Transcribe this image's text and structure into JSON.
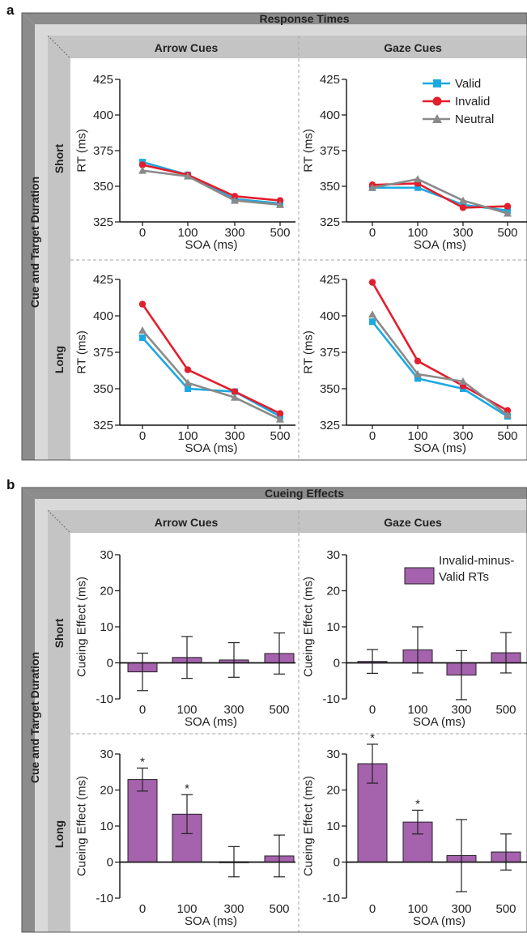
{
  "panels": {
    "a": {
      "letter": "a",
      "header": "Response Times",
      "columns": [
        "Arrow Cues",
        "Gaze Cues"
      ],
      "side_label": "Cue and Target Duration",
      "rows": [
        "Short",
        "Long"
      ]
    },
    "b": {
      "letter": "b",
      "header": "Cueing Effects",
      "columns": [
        "Arrow Cues",
        "Gaze Cues"
      ],
      "side_label": "Cue and Target Duration",
      "rows": [
        "Short",
        "Long"
      ]
    }
  },
  "colors": {
    "valid": "#1ba9e1",
    "invalid": "#e31e2d",
    "neutral": "#8a8a8a",
    "bar": "#a562ad",
    "frame_dark": "#8c8c8c",
    "frame_light": "#d9d9d9",
    "header_band": "#c4c4c4",
    "divider": "#a6a6a6"
  },
  "chart_data": [
    {
      "type": "line",
      "panel": "a",
      "column": "Arrow Cues",
      "row": "Short",
      "categories": [
        "0",
        "100",
        "300",
        "500"
      ],
      "xlabel": "SOA (ms)",
      "ylabel": "RT (ms)",
      "ylim": [
        325,
        425
      ],
      "yticks": [
        "325",
        "350",
        "375",
        "400",
        "425"
      ],
      "legend": null,
      "series": [
        {
          "name": "Valid",
          "values": [
            367,
            358,
            341,
            338
          ]
        },
        {
          "name": "Invalid",
          "values": [
            365,
            358,
            343,
            340
          ]
        },
        {
          "name": "Neutral",
          "values": [
            361,
            357,
            340,
            337
          ]
        }
      ]
    },
    {
      "type": "line",
      "panel": "a",
      "column": "Gaze Cues",
      "row": "Short",
      "categories": [
        "0",
        "100",
        "300",
        "500"
      ],
      "xlabel": "SOA (ms)",
      "ylabel": "RT (ms)",
      "ylim": [
        325,
        425
      ],
      "yticks": [
        "325",
        "350",
        "375",
        "400",
        "425"
      ],
      "legend": "top-right",
      "series": [
        {
          "name": "Valid",
          "values": [
            349,
            349,
            337,
            333
          ]
        },
        {
          "name": "Invalid",
          "values": [
            351,
            352,
            335,
            336
          ]
        },
        {
          "name": "Neutral",
          "values": [
            349,
            355,
            340,
            331
          ]
        }
      ]
    },
    {
      "type": "line",
      "panel": "a",
      "column": "Arrow Cues",
      "row": "Long",
      "categories": [
        "0",
        "100",
        "300",
        "500"
      ],
      "xlabel": "SOA (ms)",
      "ylabel": "RT (ms)",
      "ylim": [
        325,
        425
      ],
      "yticks": [
        "325",
        "350",
        "375",
        "400",
        "425"
      ],
      "legend": null,
      "series": [
        {
          "name": "Valid",
          "values": [
            385,
            350,
            348,
            331
          ]
        },
        {
          "name": "Invalid",
          "values": [
            408,
            363,
            348,
            333
          ]
        },
        {
          "name": "Neutral",
          "values": [
            390,
            354,
            344,
            329
          ]
        }
      ]
    },
    {
      "type": "line",
      "panel": "a",
      "column": "Gaze Cues",
      "row": "Long",
      "categories": [
        "0",
        "100",
        "300",
        "500"
      ],
      "xlabel": "SOA (ms)",
      "ylabel": "RT (ms)",
      "ylim": [
        325,
        425
      ],
      "yticks": [
        "325",
        "350",
        "375",
        "400",
        "425"
      ],
      "legend": null,
      "series": [
        {
          "name": "Valid",
          "values": [
            396,
            357,
            350,
            331
          ]
        },
        {
          "name": "Invalid",
          "values": [
            423,
            369,
            352,
            335
          ]
        },
        {
          "name": "Neutral",
          "values": [
            401,
            360,
            355,
            332
          ]
        }
      ]
    },
    {
      "type": "bar",
      "panel": "b",
      "column": "Arrow Cues",
      "row": "Short",
      "categories": [
        "0",
        "100",
        "300",
        "500"
      ],
      "xlabel": "SOA (ms)",
      "ylabel": "Cueing Effect (ms)",
      "ylim": [
        -10,
        30
      ],
      "yticks": [
        "-10",
        "0",
        "10",
        "20",
        "30"
      ],
      "legend": null,
      "series": [
        {
          "name": "Invalid-minus-Valid RTs",
          "values": [
            -2.5,
            1.5,
            0.8,
            2.6
          ],
          "errors": [
            5.2,
            5.8,
            4.8,
            5.7
          ],
          "significant": [
            false,
            false,
            false,
            false
          ]
        }
      ]
    },
    {
      "type": "bar",
      "panel": "b",
      "column": "Gaze Cues",
      "row": "Short",
      "categories": [
        "0",
        "100",
        "300",
        "500"
      ],
      "xlabel": "SOA (ms)",
      "ylabel": "Cueing Effect (ms)",
      "ylim": [
        -10,
        30
      ],
      "yticks": [
        "-10",
        "0",
        "10",
        "20",
        "30"
      ],
      "legend": "top-right",
      "legend_lines": [
        "Invalid-minus-",
        "Valid RTs"
      ],
      "series": [
        {
          "name": "Invalid-minus-Valid RTs",
          "values": [
            0.4,
            3.6,
            -3.4,
            2.8
          ],
          "errors": [
            3.3,
            6.4,
            6.8,
            5.6
          ],
          "significant": [
            false,
            false,
            false,
            false
          ]
        }
      ]
    },
    {
      "type": "bar",
      "panel": "b",
      "column": "Arrow Cues",
      "row": "Long",
      "categories": [
        "0",
        "100",
        "300",
        "500"
      ],
      "xlabel": "SOA (ms)",
      "ylabel": "Cueing Effect (ms)",
      "ylim": [
        -10,
        30
      ],
      "yticks": [
        "-10",
        "0",
        "10",
        "20",
        "30"
      ],
      "legend": null,
      "series": [
        {
          "name": "Invalid-minus-Valid RTs",
          "values": [
            22.9,
            13.3,
            0.1,
            1.7
          ],
          "errors": [
            3.2,
            5.4,
            4.2,
            5.8
          ],
          "significant": [
            true,
            true,
            false,
            false
          ]
        }
      ]
    },
    {
      "type": "bar",
      "panel": "b",
      "column": "Gaze Cues",
      "row": "Long",
      "categories": [
        "0",
        "100",
        "300",
        "500"
      ],
      "xlabel": "SOA (ms)",
      "ylabel": "Cueing Effect (ms)",
      "ylim": [
        -10,
        30
      ],
      "yticks": [
        "-10",
        "0",
        "10",
        "20",
        "30"
      ],
      "legend": null,
      "series": [
        {
          "name": "Invalid-minus-Valid RTs",
          "values": [
            27.3,
            11.1,
            1.8,
            2.8
          ],
          "errors": [
            5.4,
            3.3,
            10.0,
            5.0
          ],
          "significant": [
            true,
            true,
            false,
            false
          ]
        }
      ]
    }
  ]
}
